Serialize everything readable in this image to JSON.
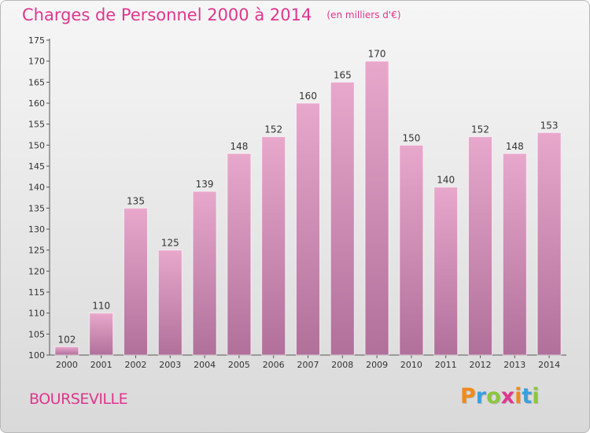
{
  "header": {
    "title": "Charges de Personnel 2000 à 2014",
    "unit": "(en milliers d'€)"
  },
  "footer": {
    "commune": "BOURSEVILLE",
    "brand_letters": [
      {
        "ch": "P",
        "color": "#f08a1c"
      },
      {
        "ch": "r",
        "color": "#3aa0dc"
      },
      {
        "ch": "o",
        "color": "#8cc63e"
      },
      {
        "ch": "x",
        "color": "#e0368e"
      },
      {
        "ch": "i",
        "color": "#f08a1c"
      },
      {
        "ch": "t",
        "color": "#3aa0dc"
      },
      {
        "ch": "i",
        "color": "#8cc63e"
      }
    ]
  },
  "chart_data": {
    "type": "bar",
    "categories": [
      "2000",
      "2001",
      "2002",
      "2003",
      "2004",
      "2005",
      "2006",
      "2007",
      "2008",
      "2009",
      "2010",
      "2011",
      "2012",
      "2013",
      "2014"
    ],
    "values": [
      102,
      110,
      135,
      125,
      139,
      148,
      152,
      160,
      165,
      170,
      150,
      140,
      152,
      148,
      153
    ],
    "ylim": [
      100,
      175
    ],
    "yticks": [
      100,
      105,
      110,
      115,
      120,
      125,
      130,
      135,
      140,
      145,
      150,
      155,
      160,
      165,
      170,
      175
    ],
    "grid": false,
    "bar_color_top": "#e8a8cc",
    "bar_color_bottom": "#b0709a",
    "accent_color": "#e0368e"
  }
}
